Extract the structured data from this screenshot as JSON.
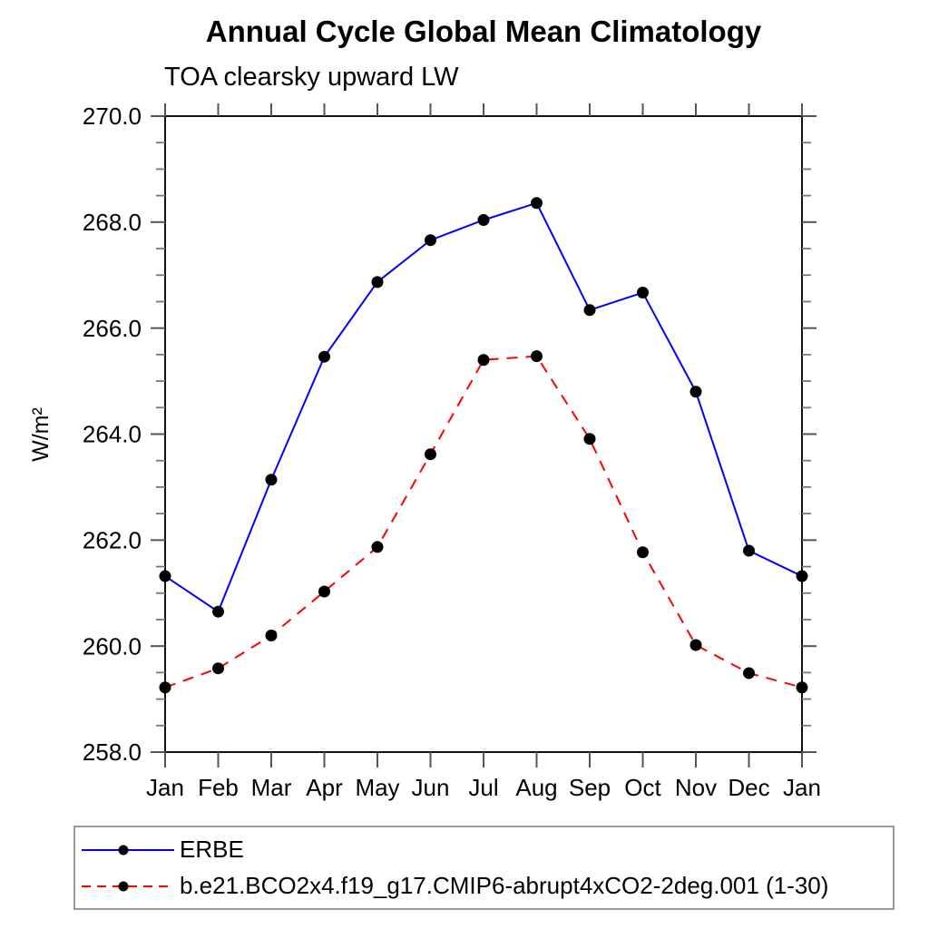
{
  "figure": {
    "title": "Annual Cycle Global Mean Climatology",
    "subtitle": "TOA clearsky upward LW"
  },
  "chart_data": {
    "type": "line",
    "title": "Annual Cycle Global Mean Climatology",
    "subtitle": "TOA clearsky upward LW",
    "xlabel": "",
    "ylabel": "W/m²",
    "categories": [
      "Jan",
      "Feb",
      "Mar",
      "Apr",
      "May",
      "Jun",
      "Jul",
      "Aug",
      "Sep",
      "Oct",
      "Nov",
      "Dec",
      "Jan"
    ],
    "ylim": [
      258.0,
      270.0
    ],
    "ytick_step": 2.0,
    "ytick_minor_step": 0.5,
    "ytick_labels": [
      "258.0",
      "260.0",
      "262.0",
      "264.0",
      "266.0",
      "268.0",
      "270.0"
    ],
    "grid": false,
    "legend_position": "bottom-left-box",
    "series": [
      {
        "name": "ERBE",
        "color": "#0000ff",
        "line_style": "solid",
        "marker": "filled-circle",
        "marker_color": "#000000",
        "values": [
          261.32,
          260.65,
          263.14,
          265.46,
          266.87,
          267.66,
          268.04,
          268.36,
          266.34,
          266.67,
          264.8,
          261.8,
          261.32
        ]
      },
      {
        "name": "b.e21.BCO2x4.f19_g17.CMIP6-abrupt4xCO2-2deg.001 (1-30)",
        "color": "#ff0000",
        "line_style": "dashed",
        "marker": "filled-circle",
        "marker_color": "#000000",
        "values": [
          259.22,
          259.58,
          260.2,
          261.03,
          261.87,
          263.62,
          265.4,
          265.47,
          263.91,
          261.77,
          260.02,
          259.49,
          259.22
        ]
      }
    ]
  }
}
